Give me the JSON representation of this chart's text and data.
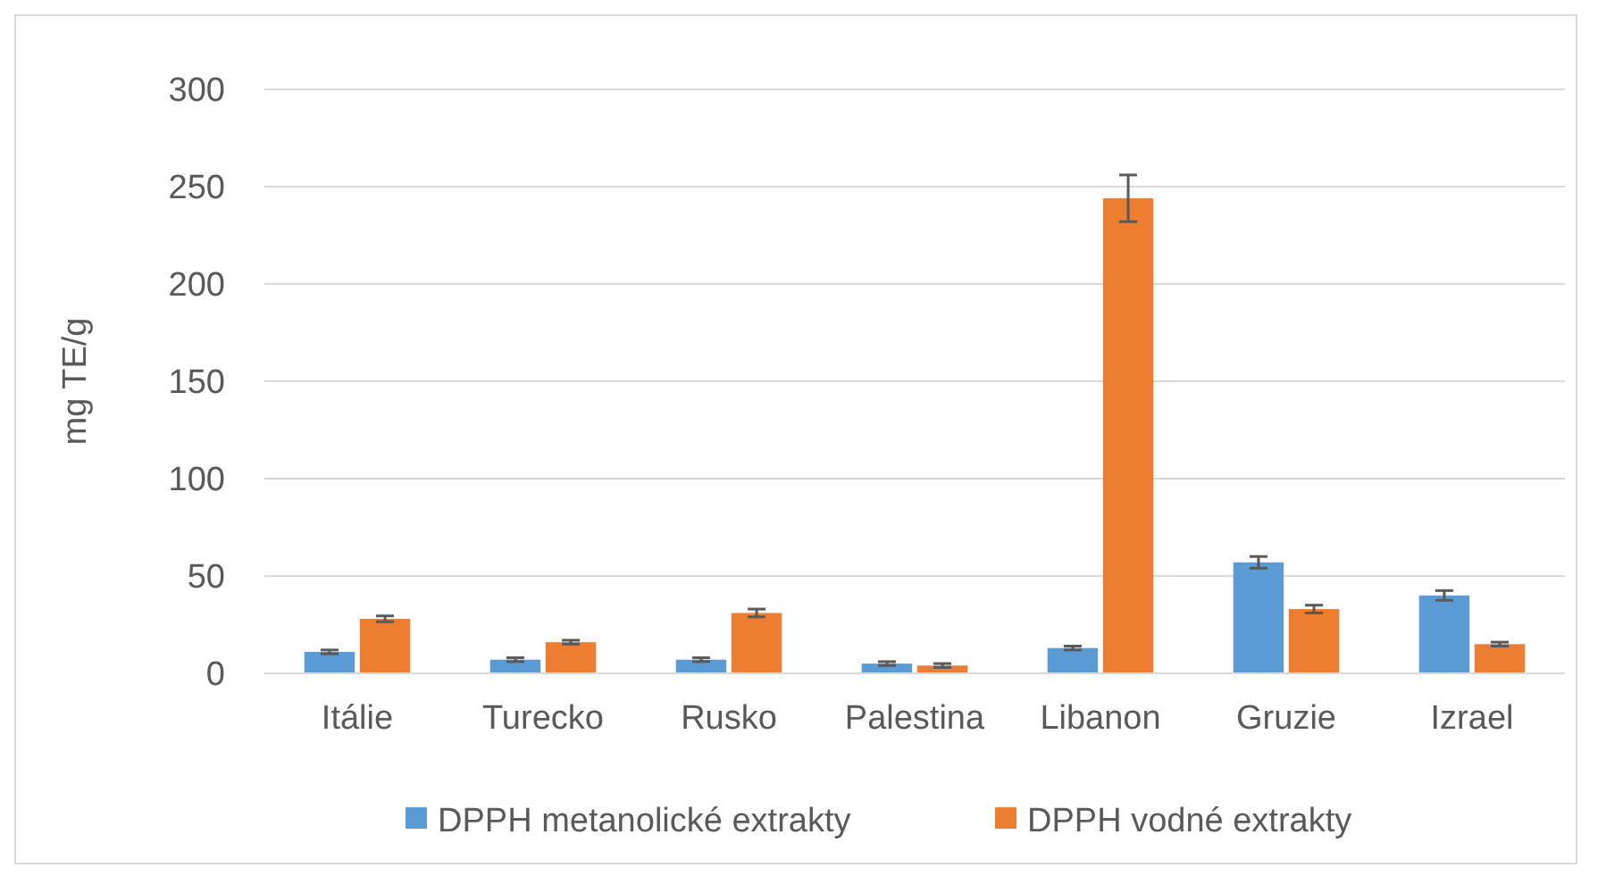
{
  "chart_data": {
    "type": "bar",
    "ylabel": "mg TE/g",
    "categories": [
      "Itálie",
      "Turecko",
      "Rusko",
      "Palestina",
      "Libanon",
      "Gruzie",
      "Izrael"
    ],
    "series": [
      {
        "name": "DPPH metanolické extrakty",
        "color": "#5b9bd5",
        "values": [
          11,
          7,
          7,
          5,
          13,
          57,
          40
        ],
        "errors": [
          1,
          1,
          1,
          1,
          1,
          3,
          2.5
        ]
      },
      {
        "name": "DPPH vodné extrakty",
        "color": "#ed7d31",
        "values": [
          28,
          16,
          31,
          4,
          244,
          33,
          15
        ],
        "errors": [
          1.5,
          1,
          2,
          1,
          12,
          2,
          1
        ]
      }
    ],
    "ylim": [
      0,
      300
    ],
    "yticks": [
      0,
      50,
      100,
      150,
      200,
      250,
      300
    ],
    "grid": "y",
    "legend": "bottom"
  }
}
